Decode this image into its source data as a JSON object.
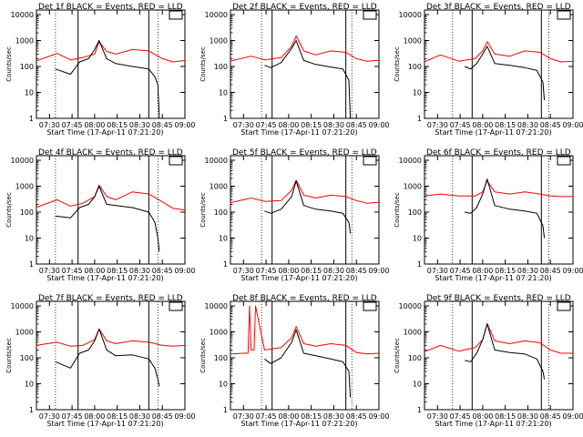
{
  "chart_data": [
    {
      "type": "line",
      "title": "Det 1f BLACK = Events, RED = LLD",
      "ylabel": "Counts/sec",
      "xlabel": "Start Time (17-Apr-11 07:21:20)",
      "x_ticks": [
        "07:30",
        "07:45",
        "08:00",
        "08:15",
        "08:30",
        "08:45",
        "09:00"
      ],
      "y_ticks": [
        "1",
        "10",
        "100",
        "1000",
        "10000"
      ],
      "xlim": [
        "07:21:20",
        "09:00"
      ],
      "ylim": [
        1,
        15000
      ],
      "yscale": "log",
      "legend": "top-right (empty box)",
      "vlines_dotted": [
        "07:34",
        "08:42"
      ],
      "vlines_solid": [
        "07:49",
        "08:36"
      ],
      "series": [
        {
          "color": "#ff0000",
          "x": [
            "07:21",
            "07:35",
            "07:44",
            "07:52",
            "08:00",
            "08:03",
            "08:08",
            "08:14",
            "08:25",
            "08:36",
            "08:45",
            "08:52",
            "09:00"
          ],
          "values": [
            160,
            320,
            180,
            220,
            300,
            900,
            380,
            300,
            450,
            400,
            200,
            150,
            170
          ]
        },
        {
          "color": "#000000",
          "x": [
            "07:34",
            "07:44",
            "07:50",
            "07:56",
            "08:00",
            "08:03",
            "08:08",
            "08:14",
            "08:25",
            "08:36",
            "08:40",
            "08:42",
            "08:43"
          ],
          "values": [
            80,
            50,
            150,
            200,
            450,
            1000,
            200,
            130,
            100,
            80,
            40,
            20,
            1
          ]
        }
      ]
    },
    {
      "type": "line",
      "title": "Det 2f BLACK = Events, RED = LLD",
      "ylabel": "Counts/sec",
      "xlabel": "Start Time (17-Apr-11 07:21:20)",
      "x_ticks": [
        "07:30",
        "07:45",
        "08:00",
        "08:15",
        "08:30",
        "08:45",
        "09:00"
      ],
      "y_ticks": [
        "1",
        "10",
        "100",
        "1000",
        "10000"
      ],
      "xlim": [
        "07:21:20",
        "09:00"
      ],
      "ylim": [
        1,
        15000
      ],
      "yscale": "log",
      "legend": "top-right (empty box)",
      "vlines_dotted": [
        "07:42",
        "08:42"
      ],
      "vlines_solid": [
        "07:49",
        "08:38"
      ],
      "series": [
        {
          "color": "#ff0000",
          "x": [
            "07:21",
            "07:35",
            "07:44",
            "07:55",
            "08:02",
            "08:05",
            "08:10",
            "08:18",
            "08:28",
            "08:38",
            "08:45",
            "08:52",
            "09:00"
          ],
          "values": [
            160,
            250,
            180,
            220,
            600,
            1500,
            400,
            280,
            400,
            350,
            200,
            160,
            170
          ]
        },
        {
          "color": "#000000",
          "x": [
            "07:44",
            "07:48",
            "07:55",
            "08:02",
            "08:05",
            "08:10",
            "08:18",
            "08:28",
            "08:36",
            "08:40",
            "08:41"
          ],
          "values": [
            110,
            90,
            140,
            500,
            1000,
            170,
            120,
            95,
            80,
            30,
            1
          ]
        }
      ]
    },
    {
      "type": "line",
      "title": "Det 3f BLACK = Events, RED = LLD",
      "ylabel": "Counts/sec",
      "xlabel": "Start Time (17-Apr-11 07:21:20)",
      "x_ticks": [
        "07:30",
        "07:45",
        "08:00",
        "08:15",
        "08:30",
        "08:45",
        "09:00"
      ],
      "y_ticks": [
        "1",
        "10",
        "100",
        "1000",
        "10000"
      ],
      "xlim": [
        "07:21:20",
        "09:00"
      ],
      "ylim": [
        1,
        15000
      ],
      "yscale": "log",
      "legend": "top-right (empty box)",
      "vlines_dotted": [
        "07:40",
        "08:44"
      ],
      "vlines_solid": [
        "07:53",
        "08:39"
      ],
      "series": [
        {
          "color": "#ff0000",
          "x": [
            "07:21",
            "07:32",
            "07:44",
            "07:55",
            "08:00",
            "08:03",
            "08:08",
            "08:18",
            "08:28",
            "08:38",
            "08:45",
            "08:52",
            "09:00"
          ],
          "values": [
            150,
            280,
            160,
            200,
            400,
            900,
            300,
            250,
            400,
            350,
            200,
            150,
            160
          ]
        },
        {
          "color": "#000000",
          "x": [
            "07:48",
            "07:52",
            "07:56",
            "08:00",
            "08:03",
            "08:08",
            "08:18",
            "08:28",
            "08:36",
            "08:40",
            "08:41"
          ],
          "values": [
            100,
            80,
            130,
            300,
            600,
            130,
            110,
            90,
            70,
            25,
            5
          ]
        }
      ]
    },
    {
      "type": "line",
      "title": "Det 4f BLACK = Events, RED = LLD",
      "ylabel": "Counts/sec",
      "xlabel": "Start Time (17-Apr-11 07:21:20)",
      "x_ticks": [
        "07:30",
        "07:45",
        "08:00",
        "08:15",
        "08:30",
        "08:45",
        "09:00"
      ],
      "y_ticks": [
        "1",
        "10",
        "100",
        "1000",
        "10000"
      ],
      "xlim": [
        "07:21:20",
        "09:00"
      ],
      "ylim": [
        1,
        15000
      ],
      "yscale": "log",
      "legend": "top-right (empty box)",
      "vlines_dotted": [
        "07:34",
        "08:42"
      ],
      "vlines_solid": [
        "07:49",
        "08:36"
      ],
      "series": [
        {
          "color": "#ff0000",
          "x": [
            "07:21",
            "07:35",
            "07:44",
            "07:52",
            "08:00",
            "08:03",
            "08:08",
            "08:14",
            "08:25",
            "08:36",
            "08:45",
            "08:52",
            "09:00"
          ],
          "values": [
            150,
            300,
            170,
            220,
            400,
            1100,
            400,
            300,
            600,
            500,
            250,
            140,
            120
          ]
        },
        {
          "color": "#000000",
          "x": [
            "07:34",
            "07:44",
            "07:50",
            "07:56",
            "08:00",
            "08:03",
            "08:08",
            "08:14",
            "08:25",
            "08:36",
            "08:40",
            "08:42",
            "08:43"
          ],
          "values": [
            70,
            60,
            150,
            200,
            400,
            1000,
            200,
            180,
            150,
            100,
            40,
            10,
            3
          ]
        }
      ]
    },
    {
      "type": "line",
      "title": "Det 5f BLACK = Events, RED = LLD",
      "ylabel": "Counts/sec",
      "xlabel": "Start Time (17-Apr-11 07:21:20)",
      "x_ticks": [
        "07:30",
        "07:45",
        "08:00",
        "08:15",
        "08:30",
        "08:45",
        "09:00"
      ],
      "y_ticks": [
        "1",
        "10",
        "100",
        "1000",
        "10000"
      ],
      "xlim": [
        "07:21:20",
        "09:00"
      ],
      "ylim": [
        1,
        15000
      ],
      "yscale": "log",
      "legend": "top-right (empty box)",
      "vlines_dotted": [
        "07:42",
        "08:42"
      ],
      "vlines_solid": [
        "07:49",
        "08:38"
      ],
      "series": [
        {
          "color": "#ff0000",
          "x": [
            "07:21",
            "07:35",
            "07:44",
            "07:55",
            "08:02",
            "08:05",
            "08:10",
            "08:18",
            "08:28",
            "08:38",
            "08:45",
            "08:52",
            "09:00"
          ],
          "values": [
            230,
            350,
            260,
            280,
            700,
            1700,
            450,
            350,
            450,
            400,
            280,
            220,
            240
          ]
        },
        {
          "color": "#000000",
          "x": [
            "07:44",
            "07:48",
            "07:55",
            "08:02",
            "08:05",
            "08:10",
            "08:18",
            "08:28",
            "08:36",
            "08:40",
            "08:41"
          ],
          "values": [
            110,
            90,
            130,
            400,
            1600,
            180,
            130,
            110,
            90,
            40,
            15
          ]
        }
      ]
    },
    {
      "type": "line",
      "title": "Det 6f BLACK = Events, RED = LLD",
      "ylabel": "Counts/sec",
      "xlabel": "Start Time (17-Apr-11 07:21:20)",
      "x_ticks": [
        "07:30",
        "07:45",
        "08:00",
        "08:15",
        "08:30",
        "08:45",
        "09:00"
      ],
      "y_ticks": [
        "1",
        "10",
        "100",
        "1000",
        "10000"
      ],
      "xlim": [
        "07:21:20",
        "09:00"
      ],
      "ylim": [
        1,
        15000
      ],
      "yscale": "log",
      "legend": "top-right (empty box)",
      "vlines_dotted": [
        "07:40",
        "08:44"
      ],
      "vlines_solid": [
        "07:53",
        "08:39"
      ],
      "series": [
        {
          "color": "#ff0000",
          "x": [
            "07:21",
            "07:32",
            "07:44",
            "07:55",
            "08:00",
            "08:03",
            "08:08",
            "08:18",
            "08:28",
            "08:38",
            "08:45",
            "08:52",
            "09:00"
          ],
          "values": [
            420,
            500,
            420,
            420,
            600,
            1600,
            600,
            500,
            600,
            500,
            420,
            400,
            400
          ]
        },
        {
          "color": "#000000",
          "x": [
            "07:48",
            "07:52",
            "07:56",
            "08:00",
            "08:03",
            "08:08",
            "08:18",
            "08:28",
            "08:36",
            "08:40",
            "08:41"
          ],
          "values": [
            100,
            90,
            150,
            500,
            1900,
            180,
            130,
            110,
            90,
            30,
            10
          ]
        }
      ]
    },
    {
      "type": "line",
      "title": "Det 7f BLACK = Events, RED = LLD",
      "ylabel": "Counts/sec",
      "xlabel": "Start Time (17-Apr-11 07:21:20)",
      "x_ticks": [
        "07:30",
        "07:45",
        "08:00",
        "08:15",
        "08:30",
        "08:45",
        "09:00"
      ],
      "y_ticks": [
        "1",
        "10",
        "100",
        "1000",
        "10000"
      ],
      "xlim": [
        "07:21:20",
        "09:00"
      ],
      "ylim": [
        1,
        15000
      ],
      "yscale": "log",
      "legend": "top-right (empty box)",
      "vlines_dotted": [
        "07:34",
        "08:42"
      ],
      "vlines_solid": [
        "07:49",
        "08:36"
      ],
      "series": [
        {
          "color": "#ff0000",
          "x": [
            "07:21",
            "07:35",
            "07:44",
            "07:52",
            "08:00",
            "08:03",
            "08:08",
            "08:14",
            "08:25",
            "08:36",
            "08:45",
            "08:52",
            "09:00"
          ],
          "values": [
            300,
            400,
            280,
            300,
            500,
            1300,
            450,
            350,
            450,
            400,
            300,
            280,
            300
          ]
        },
        {
          "color": "#000000",
          "x": [
            "07:34",
            "07:44",
            "07:50",
            "07:56",
            "08:00",
            "08:03",
            "08:08",
            "08:14",
            "08:25",
            "08:36",
            "08:40",
            "08:42",
            "08:43"
          ],
          "values": [
            70,
            40,
            150,
            200,
            450,
            1300,
            200,
            120,
            130,
            90,
            40,
            15,
            8
          ]
        }
      ]
    },
    {
      "type": "line",
      "title": "Det 8f BLACK = Events, RED = LLD",
      "ylabel": "Counts/sec",
      "xlabel": "Start Time (17-Apr-11 07:21:20)",
      "x_ticks": [
        "07:30",
        "07:45",
        "08:00",
        "08:15",
        "08:30",
        "08:45",
        "09:00"
      ],
      "y_ticks": [
        "1",
        "10",
        "100",
        "1000",
        "10000"
      ],
      "xlim": [
        "07:21:20",
        "09:00"
      ],
      "ylim": [
        1,
        15000
      ],
      "yscale": "log",
      "legend": "top-right (empty box)",
      "vlines_dotted": [
        "07:42",
        "08:42"
      ],
      "vlines_solid": [
        "07:49",
        "08:38"
      ],
      "series": [
        {
          "color": "#ff0000",
          "x": [
            "07:21",
            "07:30",
            "07:33",
            "07:34",
            "07:35",
            "07:37",
            "07:38",
            "07:44",
            "07:55",
            "08:02",
            "08:05",
            "08:10",
            "08:18",
            "08:28",
            "08:38",
            "08:45",
            "08:52",
            "09:00"
          ],
          "values": [
            140,
            150,
            150,
            10000,
            200,
            200,
            10000,
            200,
            250,
            600,
            1600,
            350,
            280,
            350,
            300,
            160,
            140,
            150
          ]
        },
        {
          "color": "#000000",
          "x": [
            "07:44",
            "07:48",
            "07:55",
            "08:02",
            "08:05",
            "08:10",
            "08:18",
            "08:28",
            "08:36",
            "08:40",
            "08:41"
          ],
          "values": [
            90,
            60,
            100,
            400,
            1200,
            150,
            120,
            90,
            70,
            30,
            3
          ]
        }
      ]
    },
    {
      "type": "line",
      "title": "Det 9f BLACK = Events, RED = LLD",
      "ylabel": "Counts/sec",
      "xlabel": "Start Time (17-Apr-11 07:21:20)",
      "x_ticks": [
        "07:30",
        "07:45",
        "08:00",
        "08:15",
        "08:30",
        "08:45",
        "09:00"
      ],
      "y_ticks": [
        "1",
        "10",
        "100",
        "1000",
        "10000"
      ],
      "xlim": [
        "07:21:20",
        "09:00"
      ],
      "ylim": [
        1,
        15000
      ],
      "yscale": "log",
      "legend": "top-right (empty box)",
      "vlines_dotted": [
        "07:40",
        "08:44"
      ],
      "vlines_solid": [
        "07:53",
        "08:39"
      ],
      "series": [
        {
          "color": "#ff0000",
          "x": [
            "07:21",
            "07:32",
            "07:44",
            "07:55",
            "08:00",
            "08:03",
            "08:08",
            "08:18",
            "08:28",
            "08:38",
            "08:45",
            "08:52",
            "09:00"
          ],
          "values": [
            170,
            300,
            180,
            250,
            500,
            2100,
            450,
            350,
            450,
            380,
            200,
            150,
            150
          ]
        },
        {
          "color": "#000000",
          "x": [
            "07:48",
            "07:52",
            "07:56",
            "08:00",
            "08:03",
            "08:08",
            "08:18",
            "08:28",
            "08:36",
            "08:40",
            "08:41"
          ],
          "values": [
            80,
            70,
            150,
            500,
            2000,
            200,
            160,
            140,
            90,
            30,
            15
          ]
        }
      ]
    }
  ]
}
